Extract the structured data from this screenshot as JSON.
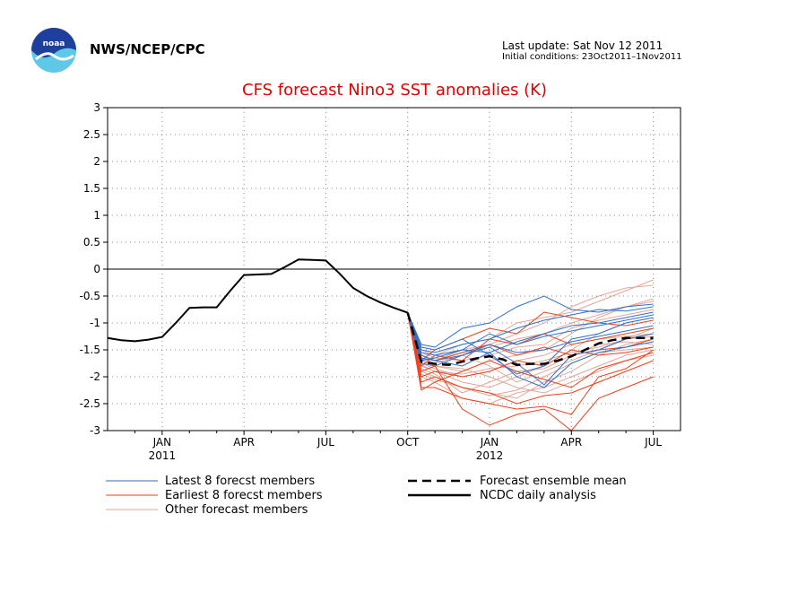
{
  "header": {
    "org": "NWS/NCEP/CPC",
    "last_update": "Last update: Sat Nov 12 2011",
    "initial_conditions": "Initial conditions: 23Oct2011–1Nov2011"
  },
  "chart_data": {
    "type": "line",
    "title": "CFS forecast Nino3 SST anomalies (K)",
    "ylim": [
      -3,
      3
    ],
    "yticks": [
      3,
      2.5,
      2,
      1.5,
      1,
      0.5,
      0,
      -0.5,
      -1,
      -1.5,
      -2,
      -2.5,
      -3
    ],
    "x_range": [
      0,
      21
    ],
    "xticks": [
      {
        "x": 2,
        "label": "JAN",
        "year": "2011"
      },
      {
        "x": 5,
        "label": "APR",
        "year": ""
      },
      {
        "x": 8,
        "label": "JUL",
        "year": ""
      },
      {
        "x": 11,
        "label": "OCT",
        "year": ""
      },
      {
        "x": 14,
        "label": "JAN",
        "year": "2012"
      },
      {
        "x": 17,
        "label": "APR",
        "year": ""
      },
      {
        "x": 20,
        "label": "JUL",
        "year": ""
      }
    ],
    "grid": true,
    "colors": {
      "latest": "#3070c8",
      "earliest": "#e8401a",
      "other": "#e0a898",
      "mean": "#000000",
      "analysis": "#000000"
    },
    "legend": {
      "latest": "Latest 8 forecst members",
      "earliest": "Earliest 8 forecst members",
      "other": "Other forecast members",
      "mean": "Forecast ensemble mean",
      "analysis": "NCDC daily analysis"
    },
    "analysis": {
      "x": [
        0,
        0.5,
        1,
        1.5,
        2,
        2.5,
        3,
        3.5,
        4,
        4.5,
        5,
        5.5,
        6,
        6.5,
        7,
        7.5,
        8,
        8.5,
        9,
        9.5,
        10,
        10.5,
        11
      ],
      "y": [
        -1.28,
        -1.32,
        -1.34,
        -1.31,
        -1.26,
        -1.0,
        -0.72,
        -0.71,
        -0.71,
        -0.4,
        -0.11,
        -0.1,
        -0.09,
        0.04,
        0.18,
        0.17,
        0.16,
        -0.08,
        -0.35,
        -0.5,
        -0.62,
        -0.72,
        -0.81
      ]
    },
    "mean": {
      "x": [
        11,
        11.5,
        12,
        12.5,
        13,
        13.5,
        14,
        14.5,
        15,
        15.5,
        16,
        16.5,
        17,
        17.5,
        18,
        18.5,
        19,
        19.5,
        20
      ],
      "y": [
        -0.81,
        -1.72,
        -1.76,
        -1.78,
        -1.72,
        -1.66,
        -1.62,
        -1.68,
        -1.78,
        -1.76,
        -1.76,
        -1.7,
        -1.62,
        -1.5,
        -1.38,
        -1.32,
        -1.28,
        -1.28,
        -1.28
      ]
    },
    "forecast_x": [
      11,
      11.5,
      12,
      13,
      14,
      15,
      16,
      17,
      18,
      19,
      20
    ],
    "latest_members": [
      [
        -0.81,
        -1.4,
        -1.45,
        -1.1,
        -1.0,
        -0.7,
        -0.5,
        -0.75,
        -0.8,
        -0.7,
        -0.65
      ],
      [
        -0.81,
        -1.5,
        -1.55,
        -1.4,
        -1.3,
        -1.1,
        -0.95,
        -0.85,
        -0.75,
        -0.78,
        -0.7
      ],
      [
        -0.81,
        -1.55,
        -1.6,
        -1.5,
        -1.55,
        -1.35,
        -1.2,
        -1.05,
        -1.0,
        -0.9,
        -0.8
      ],
      [
        -0.81,
        -1.45,
        -1.5,
        -1.3,
        -1.6,
        -1.95,
        -1.8,
        -1.3,
        -1.2,
        -1.0,
        -0.9
      ],
      [
        -0.81,
        -1.6,
        -1.7,
        -1.6,
        -1.45,
        -1.75,
        -2.15,
        -1.6,
        -1.5,
        -1.3,
        -1.2
      ],
      [
        -0.81,
        -1.65,
        -1.7,
        -1.8,
        -1.55,
        -2.0,
        -2.2,
        -1.75,
        -1.55,
        -1.45,
        -1.35
      ],
      [
        -0.81,
        -1.7,
        -1.65,
        -1.5,
        -1.2,
        -1.4,
        -1.25,
        -1.15,
        -1.05,
        -0.95,
        -0.85
      ],
      [
        -0.81,
        -1.75,
        -1.8,
        -1.6,
        -1.4,
        -1.55,
        -1.5,
        -1.35,
        -1.25,
        -1.15,
        -1.05
      ]
    ],
    "earliest_members": [
      [
        -0.81,
        -2.2,
        -2.2,
        -2.4,
        -2.5,
        -2.6,
        -2.55,
        -2.7,
        -2.0,
        -1.85,
        -1.5
      ],
      [
        -0.81,
        -2.1,
        -2.0,
        -2.2,
        -2.3,
        -2.5,
        -2.35,
        -2.3,
        -2.1,
        -1.9,
        -1.7
      ],
      [
        -0.81,
        -1.9,
        -1.8,
        -2.6,
        -2.9,
        -2.7,
        -2.6,
        -3.0,
        -2.4,
        -2.2,
        -2.0
      ],
      [
        -0.81,
        -1.8,
        -1.6,
        -1.7,
        -1.3,
        -1.4,
        -1.2,
        -1.4,
        -1.3,
        -1.2,
        -1.1
      ],
      [
        -0.81,
        -1.7,
        -1.5,
        -1.3,
        -1.1,
        -1.2,
        -0.8,
        -0.9,
        -1.0,
        -1.05,
        -0.95
      ],
      [
        -0.81,
        -2.0,
        -1.9,
        -2.0,
        -1.9,
        -1.7,
        -1.8,
        -1.5,
        -1.6,
        -1.55,
        -1.45
      ],
      [
        -0.81,
        -1.6,
        -1.7,
        -1.55,
        -1.4,
        -1.6,
        -1.45,
        -1.6,
        -1.5,
        -1.45,
        -1.3
      ],
      [
        -0.81,
        -2.25,
        -2.1,
        -1.9,
        -1.7,
        -1.9,
        -2.05,
        -2.2,
        -1.85,
        -1.7,
        -1.55
      ]
    ],
    "other_members": [
      [
        -0.81,
        -1.5,
        -1.6,
        -1.4,
        -1.3,
        -1.0,
        -0.9,
        -0.8,
        -0.6,
        -0.4,
        -0.2
      ],
      [
        -0.81,
        -1.6,
        -1.7,
        -1.5,
        -1.4,
        -1.2,
        -1.0,
        -0.7,
        -0.5,
        -0.35,
        -0.3
      ],
      [
        -0.81,
        -1.7,
        -1.8,
        -1.9,
        -1.7,
        -1.6,
        -1.5,
        -1.2,
        -0.9,
        -0.7,
        -0.6
      ],
      [
        -0.81,
        -1.8,
        -1.9,
        -2.1,
        -2.2,
        -2.0,
        -1.8,
        -1.5,
        -1.2,
        -1.0,
        -0.9
      ],
      [
        -0.81,
        -1.9,
        -2.0,
        -2.2,
        -2.3,
        -2.4,
        -2.1,
        -1.9,
        -1.6,
        -1.4,
        -1.3
      ],
      [
        -0.81,
        -2.0,
        -2.1,
        -2.4,
        -2.5,
        -2.3,
        -2.2,
        -2.0,
        -1.8,
        -1.6,
        -1.5
      ],
      [
        -0.81,
        -1.65,
        -1.75,
        -1.6,
        -1.8,
        -2.1,
        -1.9,
        -1.7,
        -1.5,
        -1.3,
        -1.1
      ],
      [
        -0.81,
        -1.75,
        -1.85,
        -2.0,
        -1.9,
        -1.7,
        -1.6,
        -1.4,
        -1.3,
        -1.25,
        -1.2
      ],
      [
        -0.81,
        -1.55,
        -1.65,
        -1.7,
        -1.6,
        -1.45,
        -1.4,
        -1.1,
        -0.95,
        -0.85,
        -0.75
      ],
      [
        -0.81,
        -1.85,
        -1.95,
        -2.3,
        -2.1,
        -1.9,
        -1.85,
        -1.6,
        -1.4,
        -1.35,
        -1.4
      ],
      [
        -0.81,
        -1.7,
        -1.8,
        -1.85,
        -2.0,
        -2.2,
        -2.3,
        -2.1,
        -1.9,
        -1.7,
        -1.6
      ],
      [
        -0.81,
        -1.6,
        -1.7,
        -1.55,
        -1.45,
        -1.3,
        -1.2,
        -1.0,
        -0.85,
        -0.7,
        -0.55
      ],
      [
        -0.81,
        -1.95,
        -2.05,
        -2.2,
        -2.35,
        -2.25,
        -2.0,
        -1.75,
        -1.55,
        -1.5,
        -1.45
      ],
      [
        -0.81,
        -1.78,
        -1.9,
        -1.95,
        -1.85,
        -1.8,
        -1.7,
        -1.55,
        -1.45,
        -1.3,
        -1.25
      ]
    ]
  }
}
